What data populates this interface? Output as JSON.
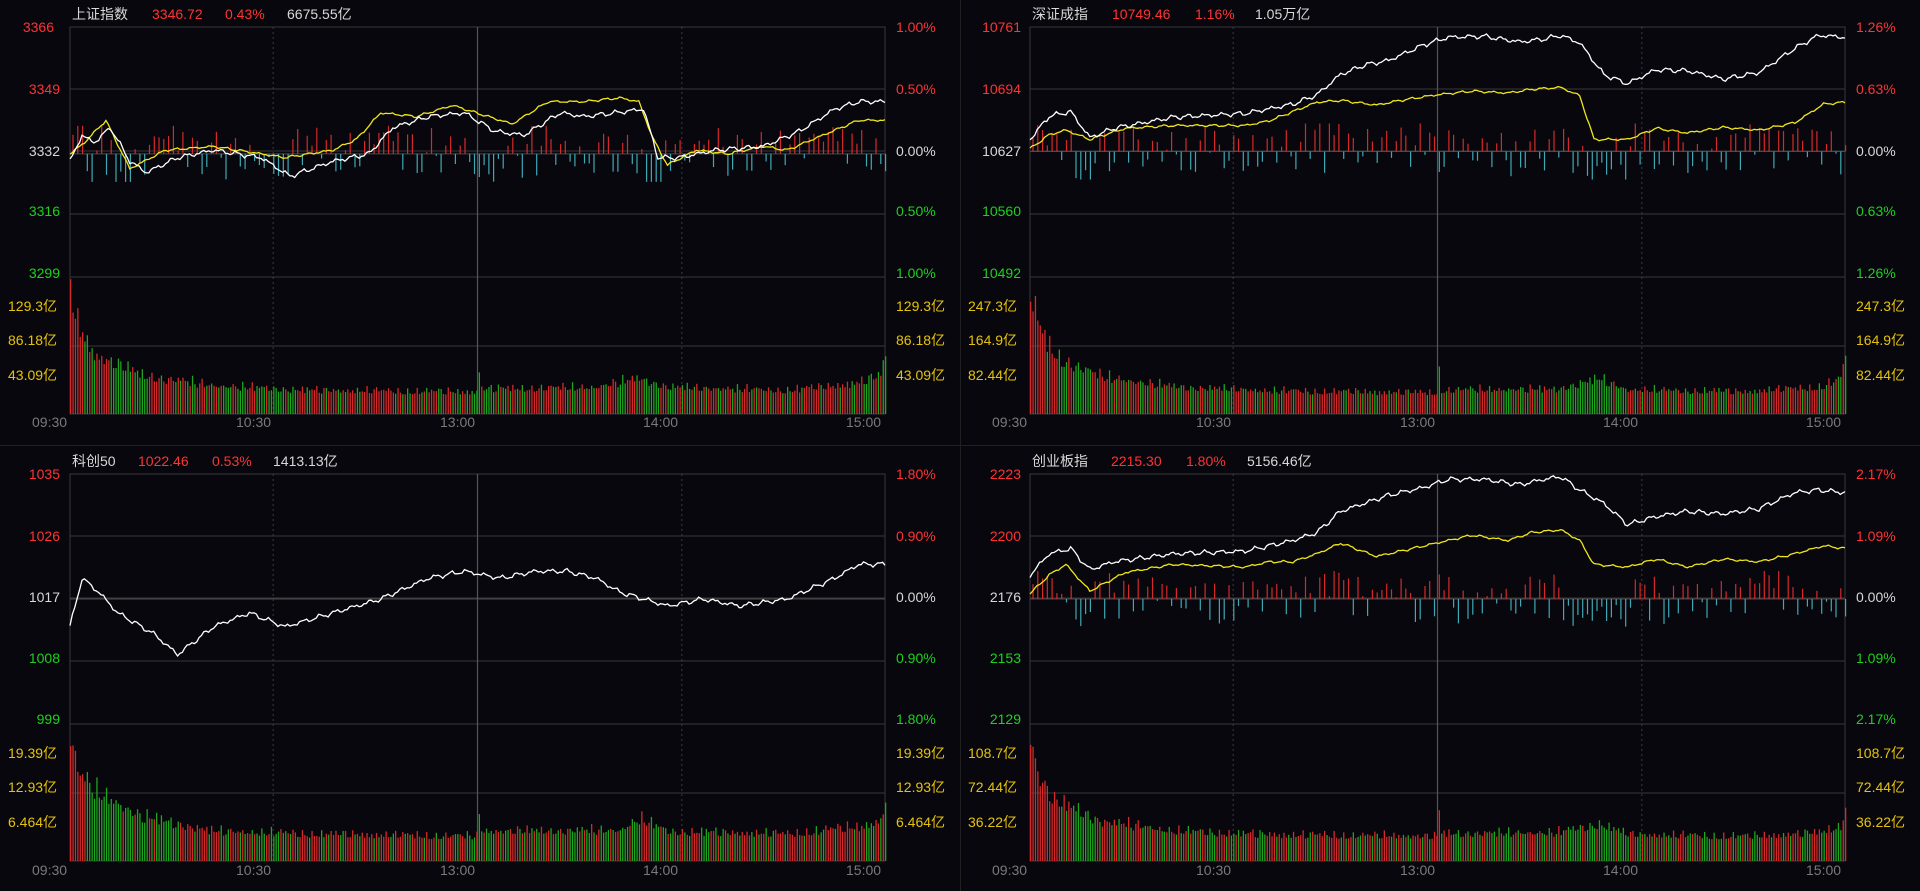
{
  "colors": {
    "background": "#07070d",
    "grid": "#3a3a3a",
    "up": "#ff3333",
    "down": "#1fd01f",
    "flat": "#d8d8d8",
    "volume_label": "#e6c30b",
    "price_line": "#ffffff",
    "avg_line": "#f0e619",
    "vol_up": "#d42a2a",
    "vol_down": "#1ea61e",
    "tick_bar_down": "#3fa8b4"
  },
  "time_labels": [
    "09:30",
    "10:30",
    "13:00",
    "14:00",
    "15:00"
  ],
  "chart_data": [
    {
      "type": "line",
      "name": "上证指数",
      "header": {
        "name": "上证指数",
        "price": "3346.72",
        "change_pct": "0.43%",
        "turnover": "6675.55亿"
      },
      "price_ticks": [
        "3366",
        "3349",
        "3332",
        "3316",
        "3299"
      ],
      "pct_ticks": [
        "1.00%",
        "0.50%",
        "0.00%",
        "0.50%",
        "1.00%"
      ],
      "ylim": [
        3299,
        3366
      ],
      "prev_close": 3332,
      "volume_ticks": [
        "129.3亿",
        "86.18亿",
        "43.09亿"
      ],
      "volume_max": 172.4,
      "has_avg_line": true,
      "has_tick_bars": true,
      "price_anchors": [
        [
          0,
          3330
        ],
        [
          5,
          3337
        ],
        [
          10,
          3335
        ],
        [
          17,
          3339
        ],
        [
          25,
          3330
        ],
        [
          32,
          3327
        ],
        [
          45,
          3331
        ],
        [
          60,
          3333
        ],
        [
          80,
          3331
        ],
        [
          92,
          3326
        ],
        [
          110,
          3330
        ],
        [
          125,
          3332
        ],
        [
          135,
          3339
        ],
        [
          150,
          3342
        ],
        [
          165,
          3343
        ],
        [
          178,
          3338
        ],
        [
          190,
          3337
        ],
        [
          205,
          3343
        ],
        [
          215,
          3342
        ],
        [
          228,
          3343
        ],
        [
          240,
          3344
        ],
        [
          246,
          3331
        ],
        [
          255,
          3331
        ],
        [
          270,
          3333
        ],
        [
          290,
          3334
        ],
        [
          305,
          3338
        ],
        [
          320,
          3344
        ],
        [
          330,
          3346
        ],
        [
          341,
          3346
        ]
      ],
      "avg_anchors": [
        [
          0,
          3332
        ],
        [
          6,
          3335
        ],
        [
          15,
          3341
        ],
        [
          25,
          3328
        ],
        [
          40,
          3333
        ],
        [
          60,
          3334
        ],
        [
          90,
          3331
        ],
        [
          110,
          3333
        ],
        [
          120,
          3336
        ],
        [
          130,
          3343
        ],
        [
          145,
          3342
        ],
        [
          160,
          3345
        ],
        [
          175,
          3342
        ],
        [
          185,
          3340
        ],
        [
          200,
          3346
        ],
        [
          215,
          3346
        ],
        [
          230,
          3347
        ],
        [
          238,
          3346
        ],
        [
          244,
          3336
        ],
        [
          250,
          3329
        ],
        [
          262,
          3333
        ],
        [
          275,
          3332
        ],
        [
          290,
          3334
        ],
        [
          300,
          3333
        ],
        [
          315,
          3337
        ],
        [
          330,
          3341
        ],
        [
          341,
          3341
        ]
      ],
      "volume_profile": [
        [
          0,
          172
        ],
        [
          3,
          120
        ],
        [
          10,
          80
        ],
        [
          30,
          52
        ],
        [
          60,
          38
        ],
        [
          100,
          32
        ],
        [
          170,
          30
        ],
        [
          171,
          60
        ],
        [
          172,
          34
        ],
        [
          220,
          36
        ],
        [
          238,
          48
        ],
        [
          250,
          36
        ],
        [
          300,
          32
        ],
        [
          330,
          42
        ],
        [
          339,
          52
        ],
        [
          341,
          80
        ]
      ]
    },
    {
      "type": "line",
      "name": "深证成指",
      "header": {
        "name": "深证成指",
        "price": "10749.46",
        "change_pct": "1.16%",
        "turnover": "1.05万亿"
      },
      "price_ticks": [
        "10761",
        "10694",
        "10627",
        "10560",
        "10492"
      ],
      "pct_ticks": [
        "1.26%",
        "0.63%",
        "0.00%",
        "0.63%",
        "1.26%"
      ],
      "ylim": [
        10492,
        10761
      ],
      "prev_close": 10627,
      "volume_ticks": [
        "247.3亿",
        "164.9亿",
        "82.44亿"
      ],
      "volume_max": 329.7,
      "has_avg_line": true,
      "has_tick_bars": true,
      "price_anchors": [
        [
          0,
          10640
        ],
        [
          8,
          10665
        ],
        [
          17,
          10670
        ],
        [
          25,
          10642
        ],
        [
          35,
          10652
        ],
        [
          60,
          10664
        ],
        [
          90,
          10668
        ],
        [
          100,
          10673
        ],
        [
          110,
          10678
        ],
        [
          120,
          10688
        ],
        [
          130,
          10710
        ],
        [
          140,
          10720
        ],
        [
          150,
          10725
        ],
        [
          165,
          10742
        ],
        [
          175,
          10750
        ],
        [
          190,
          10751
        ],
        [
          205,
          10745
        ],
        [
          215,
          10748
        ],
        [
          222,
          10752
        ],
        [
          230,
          10744
        ],
        [
          240,
          10710
        ],
        [
          250,
          10700
        ],
        [
          262,
          10715
        ],
        [
          275,
          10714
        ],
        [
          290,
          10705
        ],
        [
          305,
          10712
        ],
        [
          320,
          10738
        ],
        [
          330,
          10752
        ],
        [
          341,
          10750
        ]
      ],
      "avg_anchors": [
        [
          0,
          10630
        ],
        [
          8,
          10645
        ],
        [
          15,
          10650
        ],
        [
          25,
          10640
        ],
        [
          40,
          10652
        ],
        [
          60,
          10655
        ],
        [
          90,
          10655
        ],
        [
          100,
          10660
        ],
        [
          110,
          10670
        ],
        [
          120,
          10680
        ],
        [
          130,
          10682
        ],
        [
          145,
          10677
        ],
        [
          155,
          10682
        ],
        [
          170,
          10688
        ],
        [
          185,
          10692
        ],
        [
          200,
          10690
        ],
        [
          210,
          10694
        ],
        [
          222,
          10696
        ],
        [
          230,
          10687
        ],
        [
          236,
          10640
        ],
        [
          250,
          10640
        ],
        [
          262,
          10652
        ],
        [
          275,
          10647
        ],
        [
          290,
          10653
        ],
        [
          305,
          10650
        ],
        [
          320,
          10658
        ],
        [
          332,
          10678
        ],
        [
          341,
          10680
        ]
      ],
      "volume_profile": [
        [
          0,
          329
        ],
        [
          3,
          230
        ],
        [
          10,
          150
        ],
        [
          30,
          95
        ],
        [
          60,
          70
        ],
        [
          100,
          60
        ],
        [
          170,
          55
        ],
        [
          171,
          110
        ],
        [
          172,
          62
        ],
        [
          220,
          64
        ],
        [
          238,
          90
        ],
        [
          250,
          62
        ],
        [
          300,
          58
        ],
        [
          330,
          70
        ],
        [
          339,
          90
        ],
        [
          341,
          150
        ]
      ]
    },
    {
      "type": "line",
      "name": "科创50",
      "header": {
        "name": "科创50",
        "price": "1022.46",
        "change_pct": "0.53%",
        "turnover": "1413.13亿"
      },
      "price_ticks": [
        "1035",
        "1026",
        "1017",
        "1008",
        "999"
      ],
      "pct_ticks": [
        "1.80%",
        "0.90%",
        "0.00%",
        "0.90%",
        "1.80%"
      ],
      "ylim": [
        999,
        1035
      ],
      "prev_close": 1017,
      "volume_ticks": [
        "19.39亿",
        "12.93亿",
        "6.464亿"
      ],
      "volume_max": 25.86,
      "has_avg_line": false,
      "has_tick_bars": false,
      "price_anchors": [
        [
          0,
          1013
        ],
        [
          5,
          1020
        ],
        [
          12,
          1018
        ],
        [
          20,
          1015
        ],
        [
          35,
          1012
        ],
        [
          45,
          1009
        ],
        [
          60,
          1013
        ],
        [
          75,
          1015
        ],
        [
          90,
          1013
        ],
        [
          110,
          1015
        ],
        [
          130,
          1017
        ],
        [
          150,
          1020
        ],
        [
          165,
          1021
        ],
        [
          180,
          1020
        ],
        [
          195,
          1021
        ],
        [
          208,
          1021
        ],
        [
          220,
          1020
        ],
        [
          230,
          1018
        ],
        [
          240,
          1017
        ],
        [
          250,
          1016
        ],
        [
          265,
          1017
        ],
        [
          280,
          1016
        ],
        [
          300,
          1017
        ],
        [
          320,
          1020
        ],
        [
          330,
          1022
        ],
        [
          341,
          1022
        ]
      ],
      "avg_anchors": [],
      "volume_profile": [
        [
          0,
          25.8
        ],
        [
          3,
          18
        ],
        [
          10,
          14
        ],
        [
          30,
          9
        ],
        [
          60,
          6
        ],
        [
          100,
          5.5
        ],
        [
          170,
          5
        ],
        [
          171,
          10.8
        ],
        [
          172,
          6
        ],
        [
          230,
          6.2
        ],
        [
          238,
          8.5
        ],
        [
          250,
          6
        ],
        [
          300,
          5.5
        ],
        [
          330,
          7
        ],
        [
          339,
          8
        ],
        [
          341,
          12
        ]
      ]
    },
    {
      "type": "line",
      "name": "创业板指",
      "header": {
        "name": "创业板指",
        "price": "2215.30",
        "change_pct": "1.80%",
        "turnover": "5156.46亿"
      },
      "price_ticks": [
        "2223",
        "2200",
        "2176",
        "2153",
        "2129"
      ],
      "pct_ticks": [
        "2.17%",
        "1.09%",
        "0.00%",
        "1.09%",
        "2.17%"
      ],
      "ylim": [
        2129,
        2223
      ],
      "prev_close": 2176,
      "volume_ticks": [
        "108.7亿",
        "72.44亿",
        "36.22亿"
      ],
      "volume_max": 144.9,
      "has_avg_line": true,
      "has_tick_bars": true,
      "price_anchors": [
        [
          0,
          2185
        ],
        [
          8,
          2193
        ],
        [
          17,
          2195
        ],
        [
          25,
          2187
        ],
        [
          35,
          2190
        ],
        [
          60,
          2193
        ],
        [
          90,
          2194
        ],
        [
          100,
          2196
        ],
        [
          110,
          2198
        ],
        [
          120,
          2201
        ],
        [
          130,
          2209
        ],
        [
          140,
          2212
        ],
        [
          150,
          2215
        ],
        [
          165,
          2218
        ],
        [
          175,
          2221
        ],
        [
          190,
          2221
        ],
        [
          205,
          2219
        ],
        [
          215,
          2221
        ],
        [
          222,
          2222
        ],
        [
          230,
          2217
        ],
        [
          240,
          2212
        ],
        [
          250,
          2204
        ],
        [
          262,
          2207
        ],
        [
          275,
          2209
        ],
        [
          290,
          2208
        ],
        [
          305,
          2210
        ],
        [
          320,
          2216
        ],
        [
          330,
          2217
        ],
        [
          341,
          2216
        ]
      ],
      "avg_anchors": [
        [
          0,
          2178
        ],
        [
          8,
          2185
        ],
        [
          15,
          2189
        ],
        [
          25,
          2179
        ],
        [
          40,
          2186
        ],
        [
          60,
          2189
        ],
        [
          90,
          2188
        ],
        [
          100,
          2190
        ],
        [
          110,
          2190
        ],
        [
          120,
          2193
        ],
        [
          130,
          2197
        ],
        [
          145,
          2192
        ],
        [
          155,
          2194
        ],
        [
          170,
          2197
        ],
        [
          185,
          2200
        ],
        [
          200,
          2198
        ],
        [
          210,
          2201
        ],
        [
          222,
          2202
        ],
        [
          230,
          2198
        ],
        [
          236,
          2189
        ],
        [
          250,
          2188
        ],
        [
          262,
          2191
        ],
        [
          275,
          2188
        ],
        [
          290,
          2191
        ],
        [
          305,
          2190
        ],
        [
          320,
          2193
        ],
        [
          332,
          2196
        ],
        [
          341,
          2195
        ]
      ],
      "volume_profile": [
        [
          0,
          144
        ],
        [
          3,
          100
        ],
        [
          10,
          68
        ],
        [
          30,
          45
        ],
        [
          60,
          34
        ],
        [
          100,
          30
        ],
        [
          170,
          28
        ],
        [
          171,
          55
        ],
        [
          172,
          31
        ],
        [
          220,
          32
        ],
        [
          238,
          42
        ],
        [
          250,
          30
        ],
        [
          300,
          28
        ],
        [
          330,
          32
        ],
        [
          339,
          40
        ],
        [
          341,
          62
        ]
      ]
    }
  ]
}
